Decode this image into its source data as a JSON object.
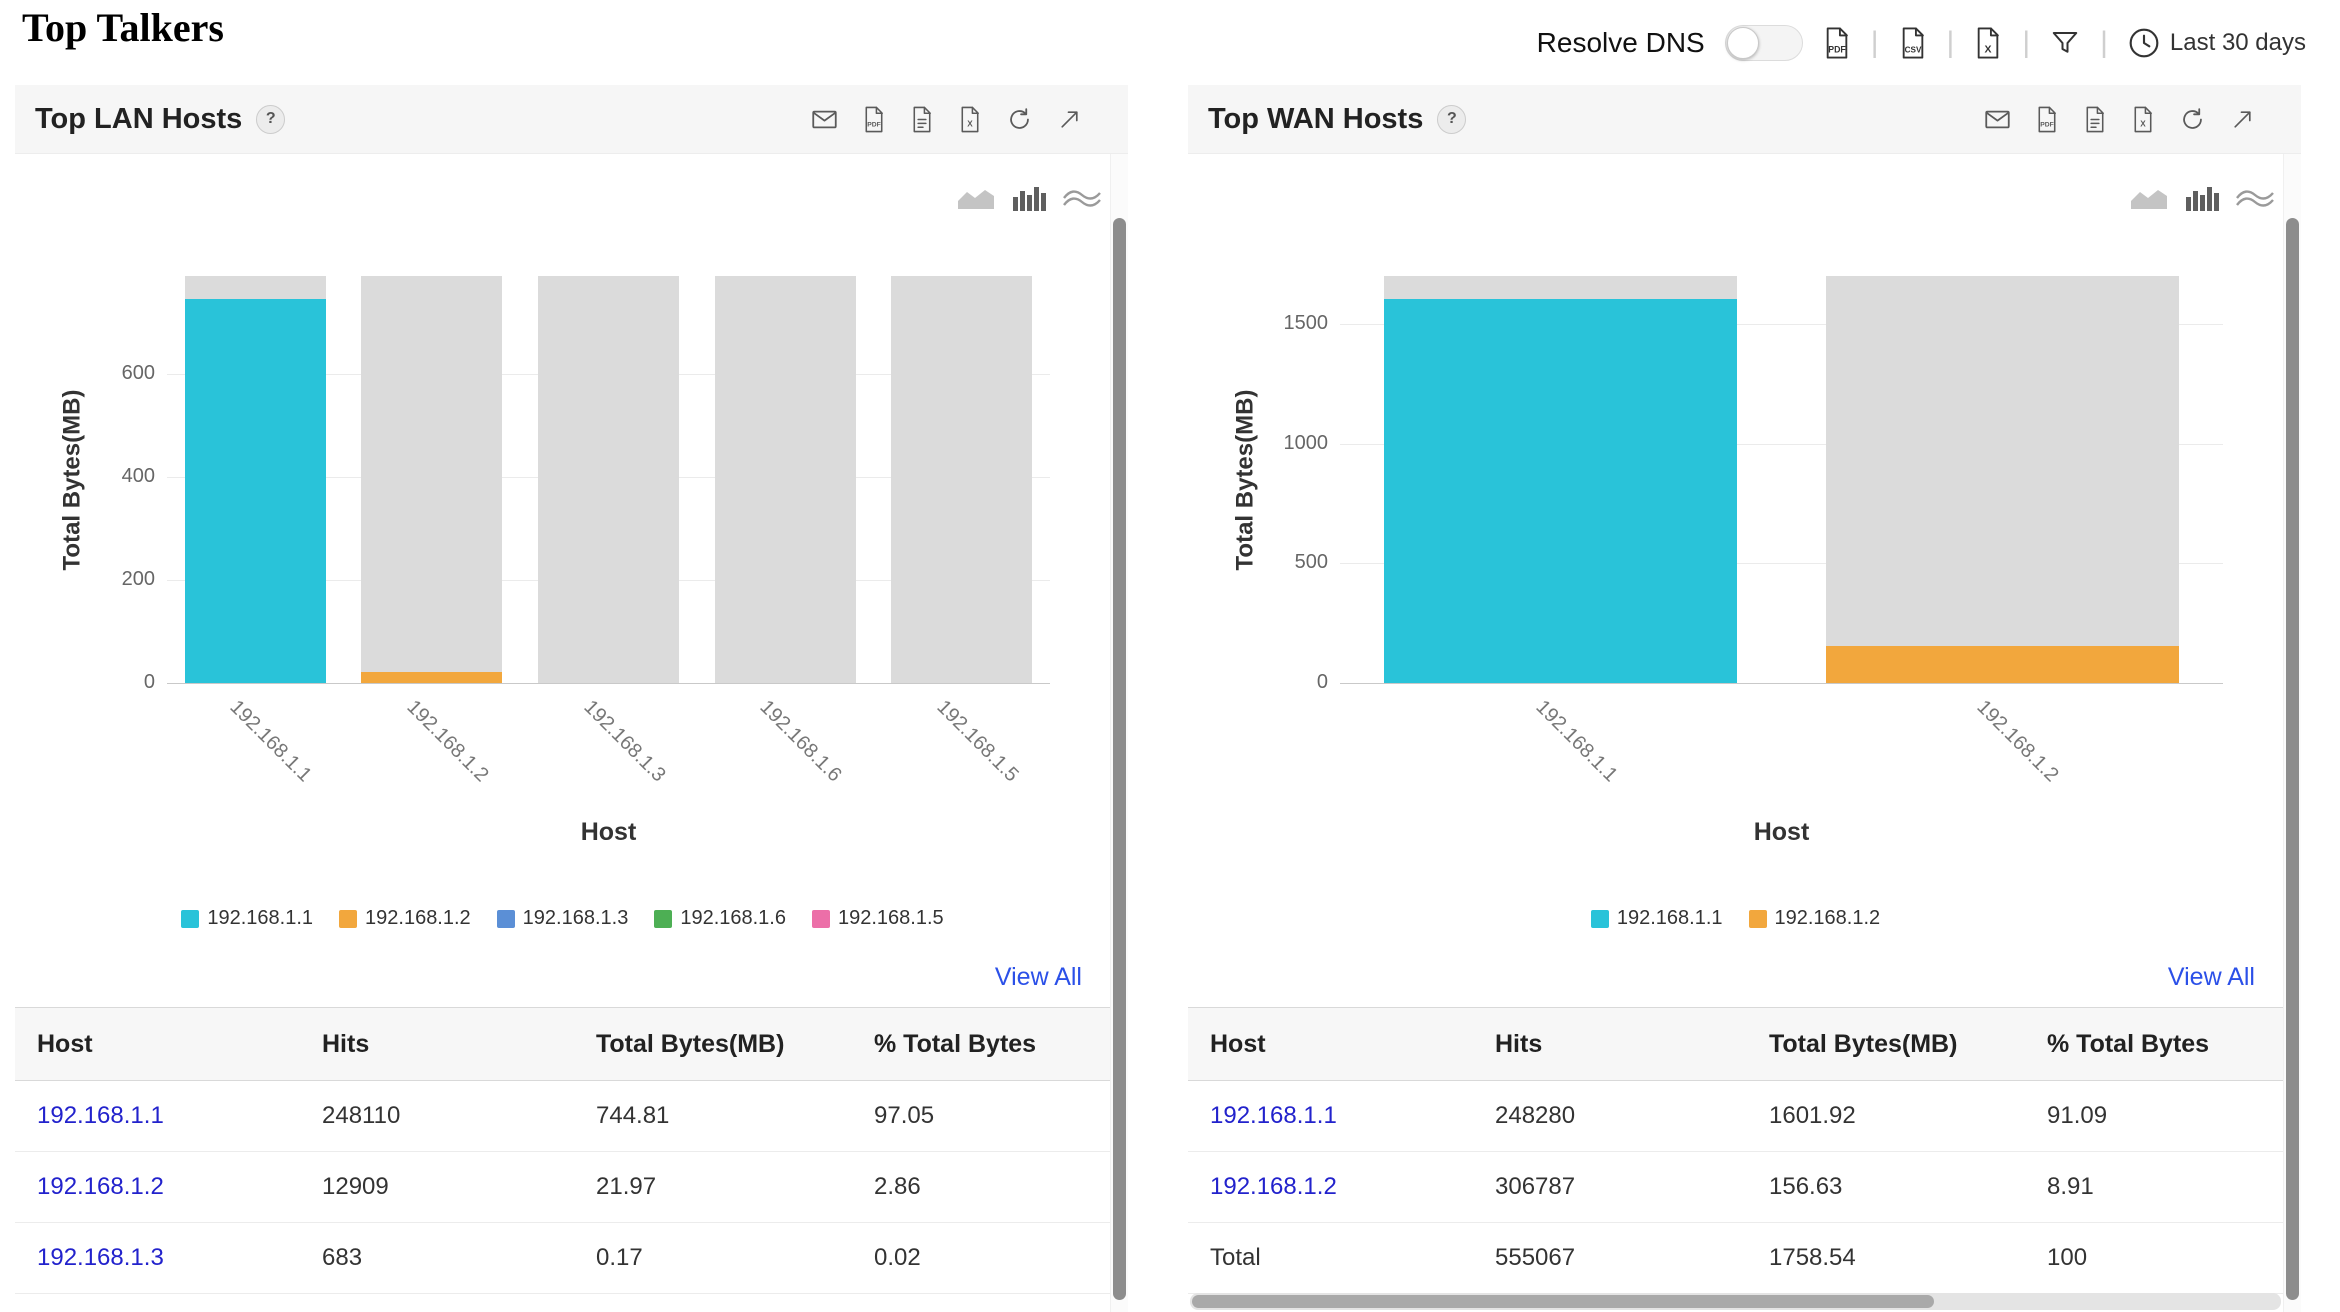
{
  "header": {
    "title": "Top Talkers",
    "resolve_dns_label": "Resolve DNS",
    "time_range_label": "Last 30 days",
    "icon_labels": {
      "pdf": "PDF",
      "csv": "CSV",
      "excel": "X"
    }
  },
  "panels": [
    {
      "title": "Top LAN Hosts",
      "help_label": "?",
      "view_all_label": "View All",
      "table": {
        "headers": [
          "Host",
          "Hits",
          "Total Bytes(MB)",
          "% Total Bytes"
        ],
        "rows": [
          {
            "cells": [
              "192.168.1.1",
              "248110",
              "744.81",
              "97.05"
            ],
            "link": true
          },
          {
            "cells": [
              "192.168.1.2",
              "12909",
              "21.97",
              "2.86"
            ],
            "link": true
          },
          {
            "cells": [
              "192.168.1.3",
              "683",
              "0.17",
              "0.02"
            ],
            "link": true
          }
        ]
      }
    },
    {
      "title": "Top WAN Hosts",
      "help_label": "?",
      "view_all_label": "View All",
      "table": {
        "headers": [
          "Host",
          "Hits",
          "Total Bytes(MB)",
          "% Total Bytes"
        ],
        "rows": [
          {
            "cells": [
              "192.168.1.1",
              "248280",
              "1601.92",
              "91.09"
            ],
            "link": true
          },
          {
            "cells": [
              "192.168.1.2",
              "306787",
              "156.63",
              "8.91"
            ],
            "link": true
          },
          {
            "cells": [
              "Total",
              "555067",
              "1758.54",
              "100"
            ],
            "link": false
          }
        ]
      }
    }
  ],
  "chart_data": [
    {
      "type": "bar",
      "title": "Top LAN Hosts",
      "xlabel": "Host",
      "ylabel": "Total Bytes(MB)",
      "yticks": [
        0,
        200,
        400,
        600
      ],
      "ylim": [
        0,
        790
      ],
      "categories": [
        "192.168.1.1",
        "192.168.1.2",
        "192.168.1.3",
        "192.168.1.6",
        "192.168.1.5"
      ],
      "values": [
        744.81,
        21.97,
        0.17,
        0,
        0
      ],
      "colors": [
        "#29C3D9",
        "#F2A73D",
        "#5B8FD6",
        "#4DAF54",
        "#EC6FA8"
      ],
      "track_color": "#DBDBDB",
      "grid": true,
      "legend_position": "bottom"
    },
    {
      "type": "bar",
      "title": "Top WAN Hosts",
      "xlabel": "Host",
      "ylabel": "Total Bytes(MB)",
      "yticks": [
        0,
        500,
        1000,
        1500
      ],
      "ylim": [
        0,
        1700
      ],
      "categories": [
        "192.168.1.1",
        "192.168.1.2"
      ],
      "values": [
        1601.92,
        156.63
      ],
      "colors": [
        "#29C3D9",
        "#F2A73D"
      ],
      "track_color": "#DBDBDB",
      "grid": true,
      "legend_position": "bottom"
    }
  ]
}
